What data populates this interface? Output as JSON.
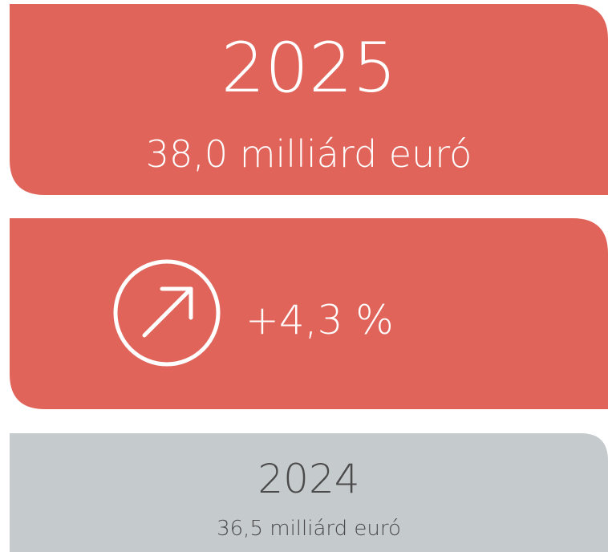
{
  "current": {
    "year": "2025",
    "amount": "38,0 milliárd euró"
  },
  "change": "+4,3 %",
  "previous": {
    "year": "2024",
    "amount": "36,5 milliárd euró"
  }
}
